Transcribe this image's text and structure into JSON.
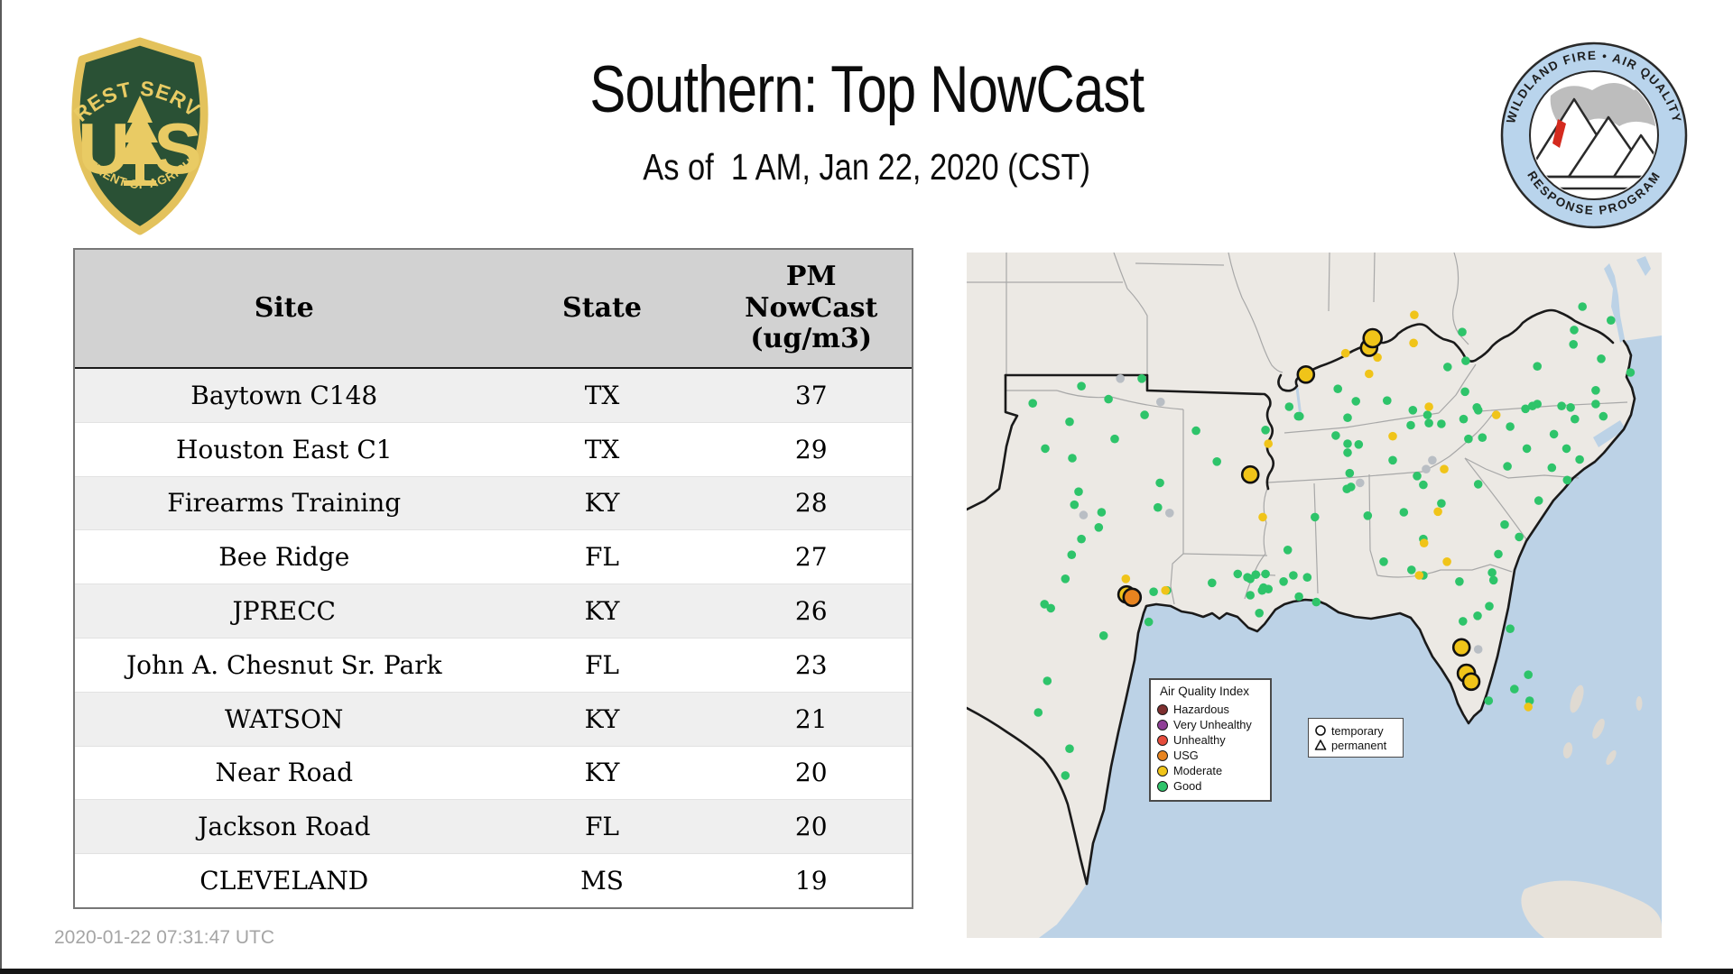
{
  "header": {
    "title": "Southern: Top NowCast",
    "subtitle": "As of  1 AM, Jan 22, 2020 (CST)"
  },
  "logos": {
    "fs_top": "FOREST SERVICE",
    "fs_us": "US",
    "fs_bottom": "DEPARTMENT OF AGRICULTURE",
    "aq_top": "WILDLAND FIRE • AIR QUALITY",
    "aq_bottom": "RESPONSE PROGRAM"
  },
  "table": {
    "columns": [
      "Site",
      "State",
      "PM NowCast (ug/m3)"
    ],
    "pm_header": [
      "PM",
      "NowCast",
      "(ug/m3)"
    ],
    "rows": [
      {
        "site": "Baytown C148",
        "state": "TX",
        "value": "37"
      },
      {
        "site": "Houston East C1",
        "state": "TX",
        "value": "29"
      },
      {
        "site": "Firearms Training",
        "state": "KY",
        "value": "28"
      },
      {
        "site": "Bee Ridge",
        "state": "FL",
        "value": "27"
      },
      {
        "site": "JPRECC",
        "state": "KY",
        "value": "26"
      },
      {
        "site": "John A. Chesnut Sr. Park",
        "state": "FL",
        "value": "23"
      },
      {
        "site": "WATSON",
        "state": "KY",
        "value": "21"
      },
      {
        "site": "Near Road",
        "state": "KY",
        "value": "20"
      },
      {
        "site": "Jackson Road",
        "state": "FL",
        "value": "20"
      },
      {
        "site": "CLEVELAND",
        "state": "MS",
        "value": "19"
      }
    ]
  },
  "map": {
    "legend": {
      "title": "Air Quality Index",
      "items": [
        {
          "label": "Hazardous",
          "color": "#7d2f2f"
        },
        {
          "label": "Very Unhealthy",
          "color": "#8f3f97"
        },
        {
          "label": "Unhealthy",
          "color": "#e54c3c"
        },
        {
          "label": "USG",
          "color": "#e8841f"
        },
        {
          "label": "Moderate",
          "color": "#f0c419"
        },
        {
          "label": "Good",
          "color": "#2ec46a"
        }
      ]
    },
    "marker_types": {
      "temporary": "temporary",
      "permanent": "permanent"
    },
    "colors": {
      "g": "#2ec46a",
      "y": "#f0c419",
      "o": "#e8841f",
      "x": "#b9bec4",
      "water": "#bcd2e6",
      "land": "#ece9e4",
      "stateline": "#a8a8a8",
      "region": "#1a1a1a"
    },
    "dots": [
      [
        9.5,
        22,
        "g"
      ],
      [
        16.5,
        19.5,
        "g"
      ],
      [
        20.4,
        21.4,
        "g"
      ],
      [
        14.8,
        24.7,
        "g"
      ],
      [
        25.6,
        23.7,
        "g"
      ],
      [
        21.3,
        27.2,
        "g"
      ],
      [
        11.3,
        28.6,
        "g"
      ],
      [
        15.2,
        30,
        "g"
      ],
      [
        25.2,
        18.4,
        "g"
      ],
      [
        27.8,
        33.6,
        "g"
      ],
      [
        16.1,
        34.9,
        "g"
      ],
      [
        15.5,
        36.8,
        "g"
      ],
      [
        19.4,
        37.9,
        "g"
      ],
      [
        19,
        40.1,
        "g"
      ],
      [
        16.5,
        41.8,
        "g"
      ],
      [
        15.1,
        44.1,
        "g"
      ],
      [
        14.2,
        47.6,
        "g"
      ],
      [
        11.2,
        51.3,
        "g"
      ],
      [
        12.1,
        51.9,
        "g"
      ],
      [
        27.5,
        37.2,
        "g"
      ],
      [
        26.9,
        49.5,
        "g"
      ],
      [
        28.8,
        49.3,
        "g"
      ],
      [
        26.2,
        53.9,
        "g"
      ],
      [
        19.7,
        55.9,
        "g"
      ],
      [
        11.6,
        62.5,
        "g"
      ],
      [
        10.3,
        67.1,
        "g"
      ],
      [
        14.8,
        72.4,
        "g"
      ],
      [
        14.2,
        76.3,
        "g"
      ],
      [
        33,
        26,
        "g"
      ],
      [
        36,
        30.5,
        "g"
      ],
      [
        39,
        46.9,
        "g"
      ],
      [
        40.4,
        47.4,
        "g"
      ],
      [
        43,
        46.9,
        "g"
      ],
      [
        35.3,
        48.2,
        "g"
      ],
      [
        40.8,
        50,
        "g"
      ],
      [
        42.7,
        48.9,
        "g"
      ],
      [
        42.1,
        52.6,
        "g"
      ],
      [
        41.6,
        47,
        "g"
      ],
      [
        47,
        47.1,
        "g"
      ],
      [
        49,
        47.4,
        "g"
      ],
      [
        40.8,
        47.6,
        "g"
      ],
      [
        42.5,
        49.3,
        "g"
      ],
      [
        43.4,
        49.1,
        "g"
      ],
      [
        45.6,
        48,
        "g"
      ],
      [
        47.8,
        50.2,
        "g"
      ],
      [
        50.3,
        51,
        "g"
      ],
      [
        46.2,
        43.4,
        "g"
      ],
      [
        50.1,
        38.6,
        "g"
      ],
      [
        43,
        25.9,
        "g"
      ],
      [
        47.7,
        23.9,
        "g"
      ],
      [
        46.4,
        22.5,
        "g"
      ],
      [
        47.9,
        23.9,
        "g"
      ],
      [
        53.4,
        19.9,
        "g"
      ],
      [
        56,
        21.7,
        "g"
      ],
      [
        60.5,
        21.6,
        "g"
      ],
      [
        64.2,
        23,
        "g"
      ],
      [
        66.3,
        23.7,
        "g"
      ],
      [
        63.9,
        25.2,
        "g"
      ],
      [
        66.5,
        24.9,
        "g"
      ],
      [
        68.3,
        25,
        "g"
      ],
      [
        71.5,
        24.3,
        "g"
      ],
      [
        73.6,
        23,
        "g"
      ],
      [
        71.3,
        11.6,
        "g"
      ],
      [
        69.2,
        16.7,
        "g"
      ],
      [
        71.8,
        15.8,
        "g"
      ],
      [
        73.4,
        22.6,
        "g"
      ],
      [
        71.7,
        20.3,
        "g"
      ],
      [
        53.1,
        26.7,
        "g"
      ],
      [
        54.8,
        24.1,
        "g"
      ],
      [
        54.8,
        27.9,
        "g"
      ],
      [
        56.4,
        28,
        "g"
      ],
      [
        54.8,
        29.2,
        "g"
      ],
      [
        61.3,
        30.3,
        "g"
      ],
      [
        55.1,
        32.2,
        "g"
      ],
      [
        55.3,
        34.2,
        "g"
      ],
      [
        54.7,
        34.5,
        "g"
      ],
      [
        64.8,
        32.6,
        "g"
      ],
      [
        65.7,
        33.9,
        "g"
      ],
      [
        68.3,
        36.6,
        "g"
      ],
      [
        62.9,
        37.9,
        "g"
      ],
      [
        57.7,
        38.4,
        "g"
      ],
      [
        60,
        45.1,
        "g"
      ],
      [
        65.7,
        41.8,
        "g"
      ],
      [
        64,
        46.3,
        "g"
      ],
      [
        65.7,
        47.1,
        "g"
      ],
      [
        70.9,
        48,
        "g"
      ],
      [
        75.6,
        46.7,
        "g"
      ],
      [
        75.8,
        47.8,
        "g"
      ],
      [
        72.2,
        27.2,
        "g"
      ],
      [
        74.2,
        27,
        "g"
      ],
      [
        80.6,
        28.6,
        "g"
      ],
      [
        80.4,
        22.8,
        "g"
      ],
      [
        81.4,
        22.4,
        "g"
      ],
      [
        78.2,
        25.4,
        "g"
      ],
      [
        77.8,
        31.2,
        "g"
      ],
      [
        73.6,
        33.8,
        "g"
      ],
      [
        82.3,
        36.2,
        "g"
      ],
      [
        77.4,
        39.7,
        "g"
      ],
      [
        79.5,
        41.5,
        "g"
      ],
      [
        76.5,
        44,
        "g"
      ],
      [
        88.6,
        7.9,
        "g"
      ],
      [
        92.7,
        9.9,
        "g"
      ],
      [
        87.4,
        11.3,
        "g"
      ],
      [
        87.3,
        13.4,
        "g"
      ],
      [
        91.3,
        15.5,
        "g"
      ],
      [
        95.5,
        17.5,
        "g"
      ],
      [
        90.5,
        20.1,
        "g"
      ],
      [
        82.1,
        16.6,
        "g"
      ],
      [
        85.6,
        22.4,
        "g"
      ],
      [
        86.9,
        22.6,
        "g"
      ],
      [
        87.5,
        24.3,
        "g"
      ],
      [
        90.5,
        22.1,
        "g"
      ],
      [
        91.6,
        23.9,
        "g"
      ],
      [
        82.1,
        22.1,
        "g"
      ],
      [
        84.5,
        26.5,
        "g"
      ],
      [
        86.3,
        28.6,
        "g"
      ],
      [
        88.2,
        30.2,
        "g"
      ],
      [
        84.2,
        31.4,
        "g"
      ],
      [
        86.4,
        33.2,
        "g"
      ],
      [
        71.4,
        53.8,
        "g"
      ],
      [
        73.5,
        53,
        "g"
      ],
      [
        75.2,
        51.6,
        "g"
      ],
      [
        80.8,
        61.6,
        "g"
      ],
      [
        78.8,
        63.7,
        "g"
      ],
      [
        75.1,
        65.4,
        "g"
      ],
      [
        81,
        65.4,
        "g"
      ],
      [
        78.2,
        54.9,
        "g"
      ],
      [
        22.9,
        47.6,
        "y"
      ],
      [
        28.6,
        49.3,
        "y"
      ],
      [
        42.6,
        38.6,
        "y"
      ],
      [
        43.4,
        27.9,
        "y"
      ],
      [
        64.4,
        9.1,
        "y"
      ],
      [
        54.5,
        14.7,
        "y"
      ],
      [
        64.3,
        13.2,
        "y"
      ],
      [
        59.1,
        15.3,
        "y"
      ],
      [
        57.9,
        17.7,
        "y"
      ],
      [
        66.5,
        22.5,
        "y"
      ],
      [
        61.3,
        26.8,
        "y"
      ],
      [
        76.2,
        23.7,
        "y"
      ],
      [
        68.7,
        31.6,
        "y"
      ],
      [
        67.8,
        37.8,
        "y"
      ],
      [
        65.8,
        42.4,
        "y"
      ],
      [
        69.1,
        45.1,
        "y"
      ],
      [
        65.1,
        47.1,
        "y"
      ],
      [
        80.8,
        66.3,
        "y"
      ],
      [
        22.1,
        18.4,
        "x"
      ],
      [
        27.9,
        21.8,
        "x"
      ],
      [
        16.8,
        38.3,
        "x"
      ],
      [
        29.2,
        38,
        "x"
      ],
      [
        67,
        30.3,
        "x"
      ],
      [
        66.1,
        31.6,
        "x"
      ],
      [
        56.6,
        33.6,
        "x"
      ],
      [
        73.6,
        57.9,
        "x"
      ]
    ],
    "big_markers": [
      [
        57.9,
        13.9,
        "y",
        9
      ],
      [
        58.4,
        12.5,
        "y",
        10
      ],
      [
        48.8,
        17.8,
        "y",
        9
      ],
      [
        40.8,
        32.4,
        "y",
        9
      ],
      [
        23.0,
        49.9,
        "y",
        9
      ],
      [
        23.8,
        50.3,
        "o",
        9.5
      ],
      [
        71.2,
        57.6,
        "y",
        9
      ],
      [
        71.9,
        61.4,
        "y",
        9.5
      ],
      [
        72.6,
        62.6,
        "y",
        9
      ]
    ]
  },
  "footer": {
    "timestamp": "2020-01-22 07:31:47 UTC"
  }
}
